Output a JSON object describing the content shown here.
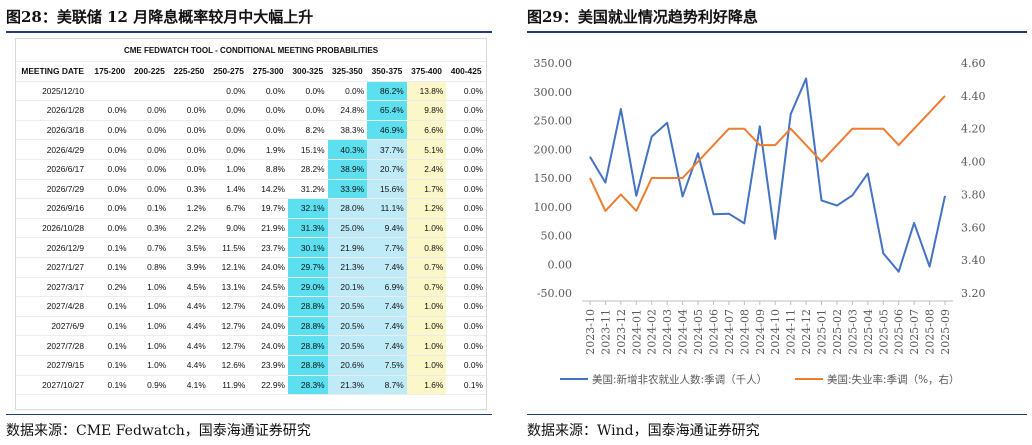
{
  "left_panel": {
    "title": "图28：美联储 12 月降息概率较月中大幅上升",
    "source": "数据来源：CME Fedwatch，国泰海通证券研究",
    "table": {
      "caption": "CME FEDWATCH TOOL - CONDITIONAL MEETING PROBABILITIES",
      "headers": [
        "MEETING DATE",
        "175-200",
        "200-225",
        "225-250",
        "250-275",
        "275-300",
        "300-325",
        "325-350",
        "350-375",
        "375-400",
        "400-425"
      ],
      "rows": [
        [
          "2025/12/10",
          "",
          "",
          "",
          "0.0%",
          "0.0%",
          "0.0%",
          "0.0%",
          "86.2%",
          "13.8%",
          "0.0%"
        ],
        [
          "2026/1/28",
          "0.0%",
          "0.0%",
          "0.0%",
          "0.0%",
          "0.0%",
          "0.0%",
          "24.8%",
          "65.4%",
          "9.8%",
          "0.0%"
        ],
        [
          "2026/3/18",
          "0.0%",
          "0.0%",
          "0.0%",
          "0.0%",
          "0.0%",
          "8.2%",
          "38.3%",
          "46.9%",
          "6.6%",
          "0.0%"
        ],
        [
          "2026/4/29",
          "0.0%",
          "0.0%",
          "0.0%",
          "0.0%",
          "1.9%",
          "15.1%",
          "40.3%",
          "37.7%",
          "5.1%",
          "0.0%"
        ],
        [
          "2026/6/17",
          "0.0%",
          "0.0%",
          "0.0%",
          "1.0%",
          "8.8%",
          "28.2%",
          "38.9%",
          "20.7%",
          "2.4%",
          "0.0%"
        ],
        [
          "2026/7/29",
          "0.0%",
          "0.0%",
          "0.3%",
          "1.4%",
          "14.2%",
          "31.2%",
          "33.9%",
          "15.6%",
          "1.7%",
          "0.0%"
        ],
        [
          "2026/9/16",
          "0.0%",
          "0.1%",
          "1.2%",
          "6.7%",
          "19.7%",
          "32.1%",
          "28.0%",
          "11.1%",
          "1.2%",
          "0.0%"
        ],
        [
          "2026/10/28",
          "0.0%",
          "0.3%",
          "2.2%",
          "9.0%",
          "21.9%",
          "31.3%",
          "25.0%",
          "9.4%",
          "1.0%",
          "0.0%"
        ],
        [
          "2026/12/9",
          "0.1%",
          "0.7%",
          "3.5%",
          "11.5%",
          "23.7%",
          "30.1%",
          "21.9%",
          "7.7%",
          "0.8%",
          "0.0%"
        ],
        [
          "2027/1/27",
          "0.1%",
          "0.8%",
          "3.9%",
          "12.1%",
          "24.0%",
          "29.7%",
          "21.3%",
          "7.4%",
          "0.7%",
          "0.0%"
        ],
        [
          "2027/3/17",
          "0.2%",
          "1.0%",
          "4.5%",
          "13.1%",
          "24.5%",
          "29.0%",
          "20.1%",
          "6.9%",
          "0.7%",
          "0.0%"
        ],
        [
          "2027/4/28",
          "0.1%",
          "1.0%",
          "4.4%",
          "12.7%",
          "24.0%",
          "28.8%",
          "20.5%",
          "7.4%",
          "1.0%",
          "0.0%"
        ],
        [
          "2027/6/9",
          "0.1%",
          "1.0%",
          "4.4%",
          "12.7%",
          "24.0%",
          "28.8%",
          "20.5%",
          "7.4%",
          "1.0%",
          "0.0%"
        ],
        [
          "2027/7/28",
          "0.1%",
          "1.0%",
          "4.4%",
          "12.7%",
          "24.0%",
          "28.8%",
          "20.5%",
          "7.4%",
          "1.0%",
          "0.0%"
        ],
        [
          "2027/9/15",
          "0.1%",
          "1.0%",
          "4.4%",
          "12.6%",
          "23.9%",
          "28.8%",
          "20.6%",
          "7.5%",
          "1.0%",
          "0.0%"
        ],
        [
          "2027/10/27",
          "0.1%",
          "0.9%",
          "4.1%",
          "11.9%",
          "22.9%",
          "28.3%",
          "21.3%",
          "8.7%",
          "1.6%",
          "0.1%"
        ]
      ],
      "highlights": [
        {
          "row": 0,
          "col": 8,
          "shade": "c-cyan"
        },
        {
          "row": 0,
          "col": 9,
          "shade": "c-yellow"
        },
        {
          "row": 1,
          "col": 8,
          "shade": "c-cyan"
        },
        {
          "row": 1,
          "col": 9,
          "shade": "c-yellow"
        },
        {
          "row": 2,
          "col": 8,
          "shade": "c-cyan"
        },
        {
          "row": 2,
          "col": 9,
          "shade": "c-yellow"
        },
        {
          "row": 3,
          "col": 7,
          "shade": "c-cyan"
        },
        {
          "row": 3,
          "col": 8,
          "shade": "c-lblue"
        },
        {
          "row": 3,
          "col": 9,
          "shade": "c-yellow"
        },
        {
          "row": 4,
          "col": 7,
          "shade": "c-cyan"
        },
        {
          "row": 4,
          "col": 8,
          "shade": "c-lblue"
        },
        {
          "row": 4,
          "col": 9,
          "shade": "c-yellow"
        },
        {
          "row": 5,
          "col": 7,
          "shade": "c-cyan"
        },
        {
          "row": 5,
          "col": 8,
          "shade": "c-lblue"
        },
        {
          "row": 5,
          "col": 9,
          "shade": "c-yellow"
        },
        {
          "row": 6,
          "col": 6,
          "shade": "c-cyan"
        },
        {
          "row": 6,
          "col": 7,
          "shade": "c-lblue"
        },
        {
          "row": 6,
          "col": 8,
          "shade": "c-lblue"
        },
        {
          "row": 6,
          "col": 9,
          "shade": "c-yellow"
        },
        {
          "row": 7,
          "col": 6,
          "shade": "c-cyan"
        },
        {
          "row": 7,
          "col": 7,
          "shade": "c-lblue"
        },
        {
          "row": 7,
          "col": 8,
          "shade": "c-lblue"
        },
        {
          "row": 7,
          "col": 9,
          "shade": "c-yellow"
        },
        {
          "row": 8,
          "col": 6,
          "shade": "c-cyan"
        },
        {
          "row": 8,
          "col": 7,
          "shade": "c-lblue"
        },
        {
          "row": 8,
          "col": 8,
          "shade": "c-lblue"
        },
        {
          "row": 8,
          "col": 9,
          "shade": "c-yellow"
        },
        {
          "row": 9,
          "col": 6,
          "shade": "c-cyan"
        },
        {
          "row": 9,
          "col": 7,
          "shade": "c-lblue"
        },
        {
          "row": 9,
          "col": 8,
          "shade": "c-lblue"
        },
        {
          "row": 9,
          "col": 9,
          "shade": "c-yellow"
        },
        {
          "row": 10,
          "col": 6,
          "shade": "c-cyan"
        },
        {
          "row": 10,
          "col": 7,
          "shade": "c-lblue"
        },
        {
          "row": 10,
          "col": 8,
          "shade": "c-lblue"
        },
        {
          "row": 10,
          "col": 9,
          "shade": "c-yellow"
        },
        {
          "row": 11,
          "col": 6,
          "shade": "c-cyan"
        },
        {
          "row": 11,
          "col": 7,
          "shade": "c-lblue"
        },
        {
          "row": 11,
          "col": 8,
          "shade": "c-lblue"
        },
        {
          "row": 11,
          "col": 9,
          "shade": "c-yellow"
        },
        {
          "row": 12,
          "col": 6,
          "shade": "c-cyan"
        },
        {
          "row": 12,
          "col": 7,
          "shade": "c-lblue"
        },
        {
          "row": 12,
          "col": 8,
          "shade": "c-lblue"
        },
        {
          "row": 12,
          "col": 9,
          "shade": "c-yellow"
        },
        {
          "row": 13,
          "col": 6,
          "shade": "c-cyan"
        },
        {
          "row": 13,
          "col": 7,
          "shade": "c-lblue"
        },
        {
          "row": 13,
          "col": 8,
          "shade": "c-lblue"
        },
        {
          "row": 13,
          "col": 9,
          "shade": "c-yellow"
        },
        {
          "row": 14,
          "col": 6,
          "shade": "c-cyan"
        },
        {
          "row": 14,
          "col": 7,
          "shade": "c-lblue"
        },
        {
          "row": 14,
          "col": 8,
          "shade": "c-lblue"
        },
        {
          "row": 14,
          "col": 9,
          "shade": "c-yellow"
        },
        {
          "row": 15,
          "col": 6,
          "shade": "c-cyan"
        },
        {
          "row": 15,
          "col": 7,
          "shade": "c-lblue"
        },
        {
          "row": 15,
          "col": 8,
          "shade": "c-lblue"
        },
        {
          "row": 15,
          "col": 9,
          "shade": "c-yellow"
        }
      ]
    }
  },
  "right_panel": {
    "title": "图29：美国就业情况趋势利好降息",
    "source": "数据来源：Wind，国泰海通证券研究"
  },
  "colors": {
    "rule": "#1f3d7a",
    "series_payroll": "#4472c4",
    "series_unemp": "#ed7d31",
    "axis_text": "#595959"
  },
  "chart_data": {
    "type": "line",
    "x": [
      "2023-10",
      "2023-11",
      "2023-12",
      "2024-01",
      "2024-02",
      "2024-03",
      "2024-04",
      "2024-05",
      "2024-06",
      "2024-07",
      "2024-08",
      "2024-09",
      "2024-10",
      "2024-11",
      "2024-12",
      "2025-01",
      "2025-02",
      "2025-03",
      "2025-04",
      "2025-05",
      "2025-06",
      "2025-07",
      "2025-08",
      "2025-09"
    ],
    "series": [
      {
        "name": "美国:新增非农就业人数:季调（千人）",
        "axis": "left",
        "values": [
          187,
          142,
          270,
          119,
          222,
          246,
          118,
          193,
          87,
          88,
          71,
          240,
          44,
          261,
          323,
          111,
          102,
          120,
          158,
          19,
          -13,
          72,
          -4,
          119
        ]
      },
      {
        "name": "美国:失业率:季调（%，右）",
        "axis": "right",
        "values": [
          3.9,
          3.7,
          3.8,
          3.7,
          3.9,
          3.9,
          3.9,
          4.0,
          4.1,
          4.2,
          4.2,
          4.1,
          4.1,
          4.2,
          4.1,
          4.0,
          4.1,
          4.2,
          4.2,
          4.2,
          4.1,
          4.2,
          4.3,
          4.4
        ]
      }
    ],
    "y_left": {
      "ylim": [
        -50,
        350
      ],
      "ticks": [
        "-50.00",
        "0.00",
        "50.00",
        "100.00",
        "150.00",
        "200.00",
        "250.00",
        "300.00",
        "350.00"
      ]
    },
    "y_right": {
      "ylim": [
        3.2,
        4.6
      ],
      "ticks": [
        "3.20",
        "3.40",
        "3.60",
        "3.80",
        "4.00",
        "4.20",
        "4.40",
        "4.60"
      ]
    },
    "grid": false,
    "legend_position": "bottom"
  }
}
